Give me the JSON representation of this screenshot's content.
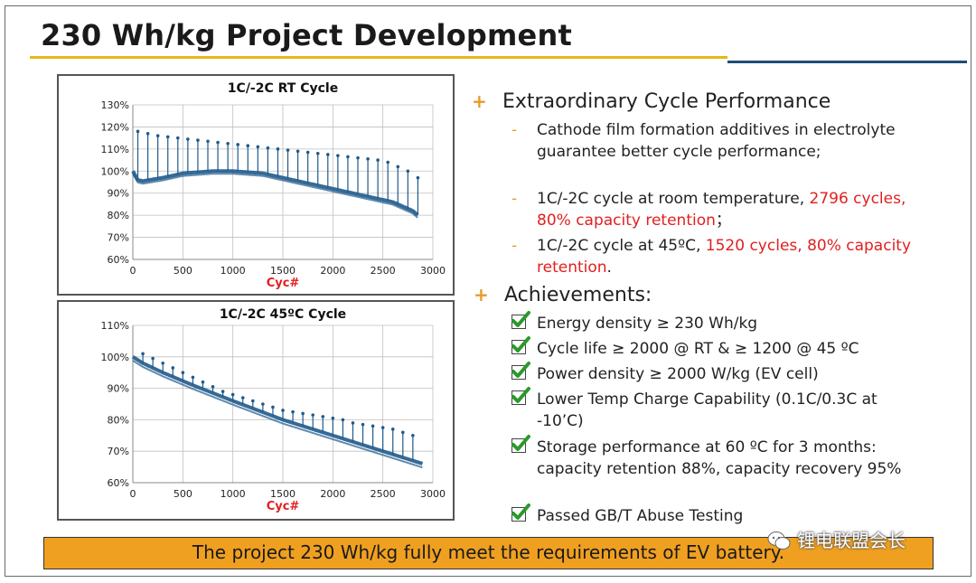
{
  "slide": {
    "title": "230 Wh/kg Project Development"
  },
  "chart_data": [
    {
      "type": "scatter",
      "title": "1C/-2C RT Cycle",
      "xlabel": "Cyc#",
      "ylabel": "",
      "xlim": [
        0,
        3000
      ],
      "ylim": [
        60,
        130
      ],
      "x_ticks": [
        "0",
        "500",
        "1000",
        "1500",
        "2000",
        "2500",
        "3000"
      ],
      "y_ticks": [
        "60%",
        "70%",
        "80%",
        "90%",
        "100%",
        "110%",
        "120%",
        "130%"
      ],
      "grid": true,
      "series_trend": {
        "x": [
          0,
          50,
          100,
          300,
          500,
          800,
          1000,
          1300,
          1500,
          1800,
          2000,
          2200,
          2400,
          2600,
          2800,
          2850
        ],
        "y": [
          100,
          96,
          95.5,
          97,
          99,
          100,
          100,
          99,
          97,
          94,
          92,
          90,
          88,
          86,
          82,
          80
        ]
      },
      "spike_x": [
        50,
        150,
        250,
        350,
        450,
        550,
        650,
        750,
        850,
        950,
        1050,
        1150,
        1250,
        1350,
        1450,
        1550,
        1650,
        1750,
        1850,
        1950,
        2050,
        2150,
        2250,
        2350,
        2450,
        2550,
        2650,
        2750,
        2850
      ],
      "spike_top": [
        118,
        117,
        116,
        115.5,
        115,
        114.5,
        114,
        113.5,
        113,
        112.5,
        112,
        111.5,
        111,
        110.5,
        110,
        109.5,
        109,
        108.5,
        108,
        107.5,
        107,
        106.5,
        106,
        105.5,
        105,
        104,
        102,
        100,
        97
      ],
      "color": "#1f5a8c"
    },
    {
      "type": "scatter",
      "title": "1C/-2C 45ºC Cycle",
      "xlabel": "Cyc#",
      "ylabel": "",
      "xlim": [
        0,
        3000
      ],
      "ylim": [
        60,
        110
      ],
      "x_ticks": [
        "0",
        "500",
        "1000",
        "1500",
        "2000",
        "2500",
        "3000"
      ],
      "y_ticks": [
        "60%",
        "70%",
        "80%",
        "90%",
        "100%",
        "110%"
      ],
      "grid": true,
      "series_trend": {
        "x": [
          0,
          100,
          300,
          600,
          1000,
          1500,
          2000,
          2500,
          2900
        ],
        "y": [
          100,
          98,
          95,
          91,
          86,
          80,
          75,
          70,
          66
        ]
      },
      "spike_x": [
        100,
        200,
        300,
        400,
        500,
        600,
        700,
        800,
        900,
        1000,
        1100,
        1200,
        1300,
        1400,
        1500,
        1600,
        1700,
        1800,
        1900,
        2000,
        2100,
        2200,
        2300,
        2400,
        2500,
        2600,
        2700,
        2800
      ],
      "spike_top": [
        101,
        99.5,
        98,
        96.5,
        95,
        93.5,
        92,
        90.5,
        89,
        88,
        87,
        86,
        85,
        84,
        83,
        82.5,
        82,
        81.5,
        81,
        80.5,
        80,
        79,
        78.5,
        78,
        77.5,
        77,
        76,
        75
      ],
      "color": "#1f5a8c"
    }
  ],
  "right": {
    "heading1": "Extraordinary Cycle Performance",
    "sub1": "Cathode film formation additives in electrolyte guarantee better cycle performance;",
    "sub2_a": "1C/-2C cycle at room temperature, ",
    "sub2_red": "2796 cycles, 80% capacity retention",
    "sub2_b": "；",
    "sub3_a": "1C/-2C cycle at 45ºC, ",
    "sub3_red": "1520 cycles, 80% capacity retention",
    "sub3_b": ".",
    "heading2": "Achievements:",
    "checks": [
      "Energy density ≥ 230 Wh/kg",
      "Cycle life ≥ 2000 @ RT & ≥ 1200 @ 45 ºC",
      "Power density ≥ 2000 W/kg (EV cell)",
      "Lower Temp Charge Capability (0.1C/0.3C at -10’C)",
      "Storage performance at 60 ºC for 3 months: capacity retention 88%, capacity recovery 95%",
      "Passed GB/T Abuse  Testing"
    ],
    "plus_symbol": "+",
    "dash_symbol": "-"
  },
  "banner": {
    "text": "The project 230 Wh/kg fully meet the requirements of EV battery."
  },
  "watermark": {
    "text": "锂电联盟会长"
  }
}
